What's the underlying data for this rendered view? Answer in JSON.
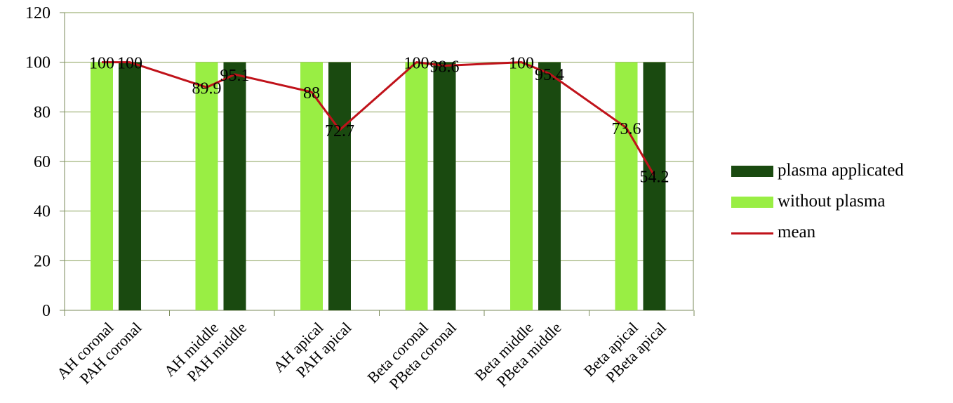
{
  "chart_data": {
    "type": "bar",
    "categories": [
      "AH coronal",
      "PAH coronal",
      "AH middle",
      "PAH middle",
      "AH apical",
      "PAH apical",
      "Beta coronal",
      "PBeta coronal",
      "Beta middle",
      "PBeta middle",
      "Beta apical",
      "PBeta apical"
    ],
    "series": [
      {
        "name": "plasma applicated",
        "kind": "bar",
        "color": "#1a4a10",
        "values": [
          null,
          100,
          null,
          100,
          null,
          100,
          null,
          100,
          null,
          100,
          null,
          100
        ]
      },
      {
        "name": "without plasma",
        "kind": "bar",
        "color": "#99ee44",
        "values": [
          100,
          null,
          100,
          null,
          100,
          null,
          100,
          null,
          100,
          null,
          100,
          null
        ]
      },
      {
        "name": "mean",
        "kind": "line",
        "color": "#c0121a",
        "values": [
          100,
          100,
          89.9,
          95.1,
          88,
          72.7,
          100,
          98.6,
          100,
          95.4,
          73.6,
          54.2
        ],
        "labels": [
          "100",
          "100",
          "89.9",
          "95.1",
          "88",
          "72.7",
          "100",
          "98.6",
          "100",
          "95.4",
          "73.6",
          "54.2"
        ]
      }
    ],
    "ylim": [
      0,
      120
    ],
    "yticks": [
      "0",
      "20",
      "40",
      "60",
      "80",
      "100",
      "120"
    ],
    "grid": true,
    "legend_position": "right"
  }
}
